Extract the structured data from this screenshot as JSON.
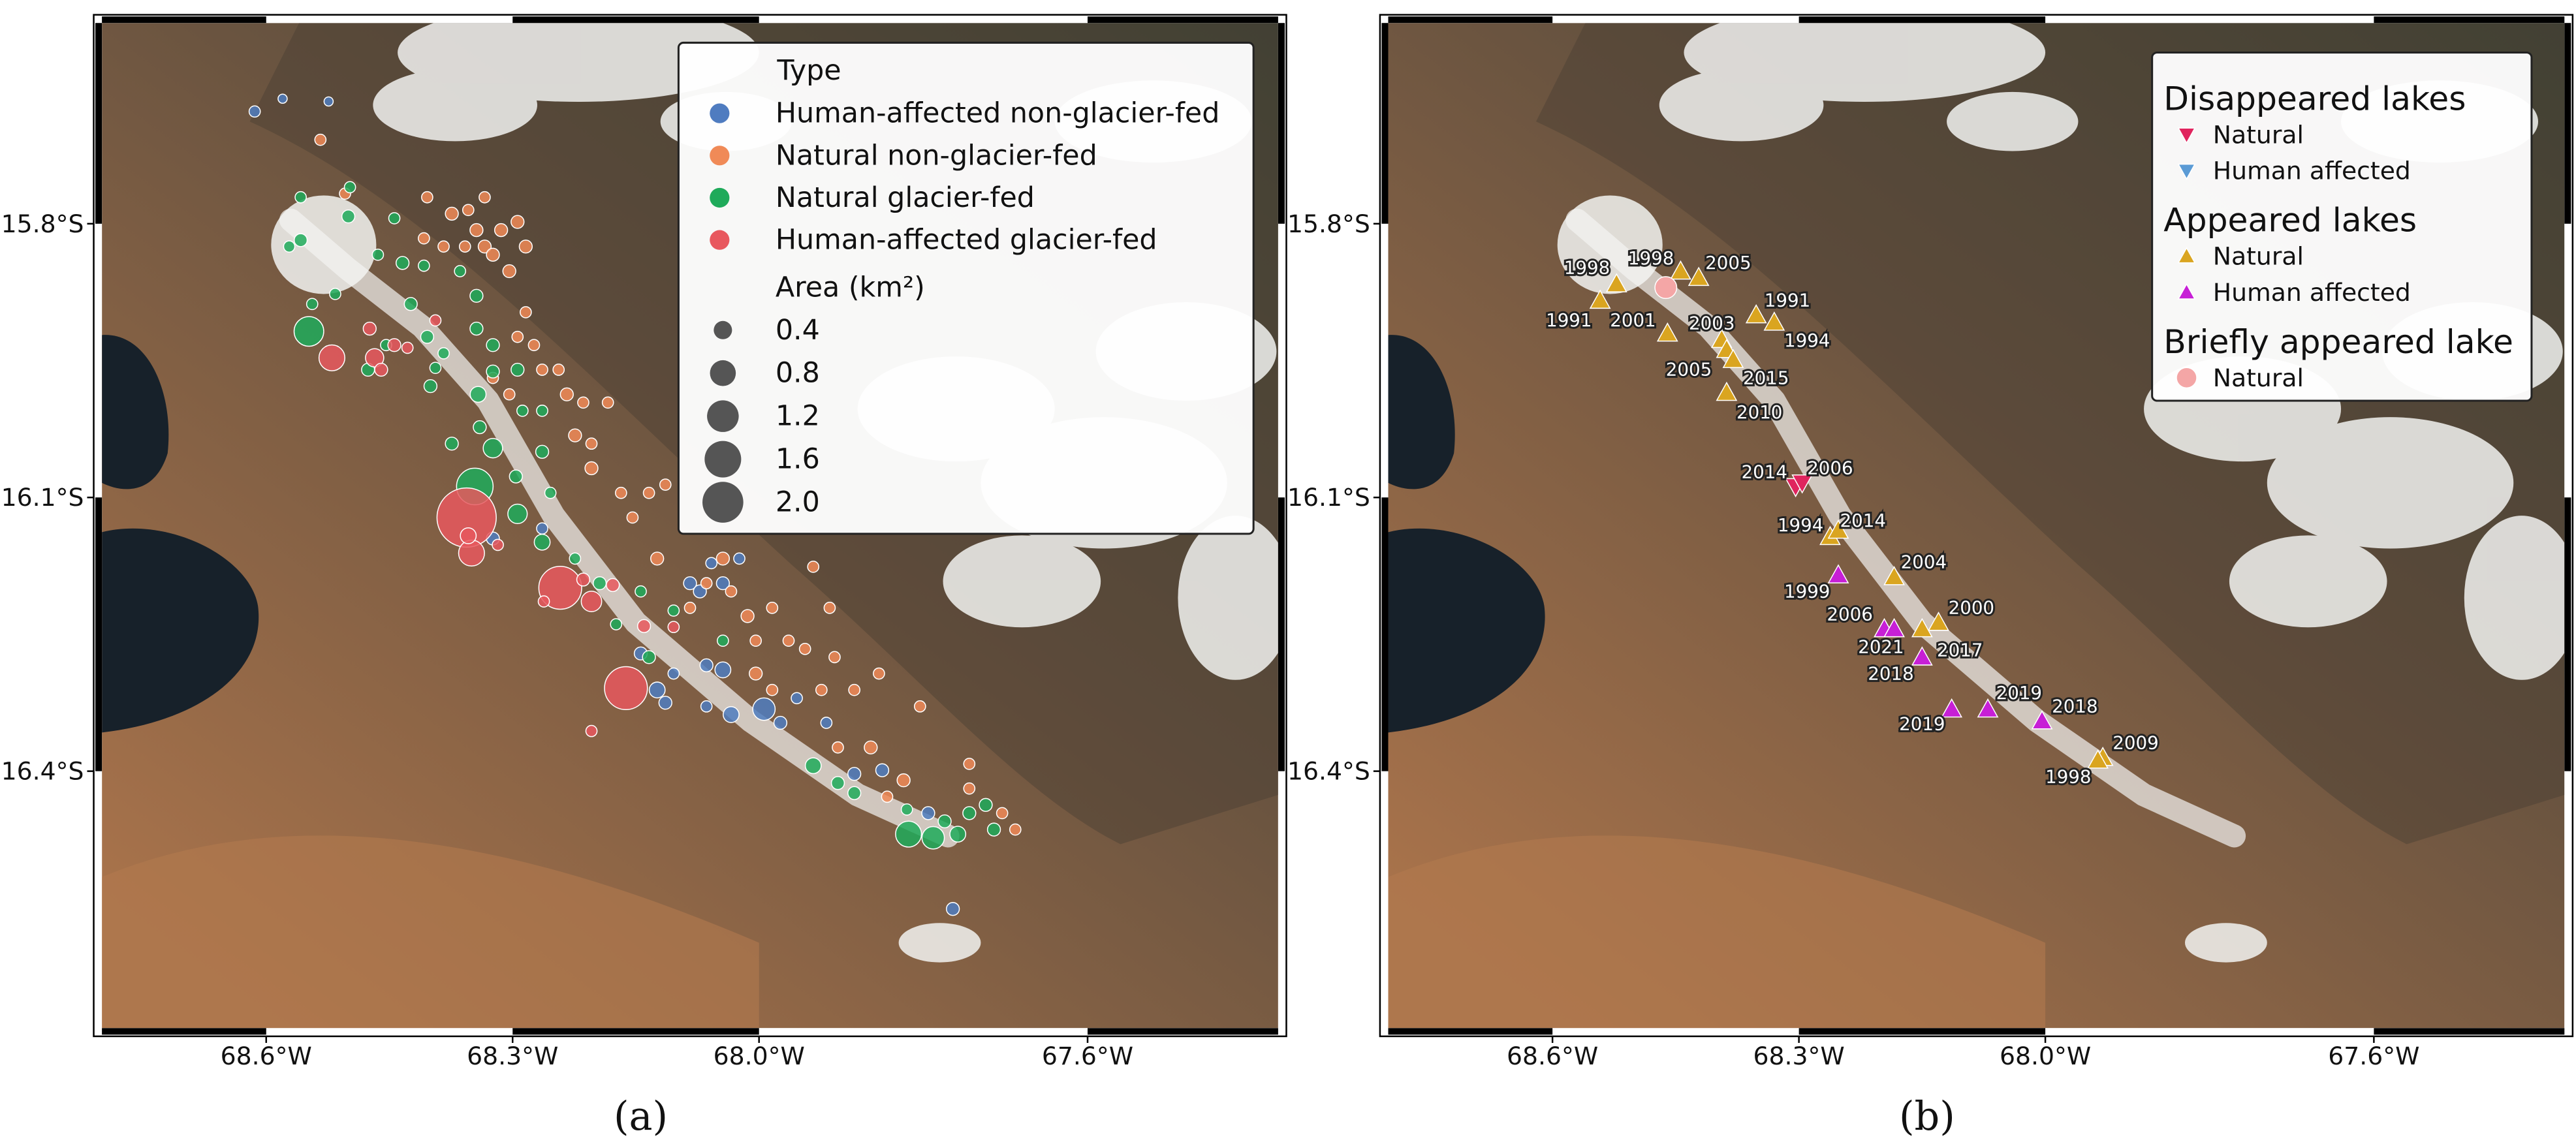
{
  "chart_data": [
    {
      "type": "bubble",
      "caption": "(a)",
      "xlim": [
        -68.8,
        -67.368
      ],
      "ylim": [
        -16.6816,
        -15.58
      ],
      "xticks": [
        {
          "value": -68.6,
          "label": "68.6°W"
        },
        {
          "value": -68.3,
          "label": "68.3°W"
        },
        {
          "value": -68.0,
          "label": "68.0°W"
        },
        {
          "value": -67.6,
          "label": "67.6°W"
        }
      ],
      "yticks": [
        {
          "value": -15.8,
          "label": "15.8°S"
        },
        {
          "value": -16.1,
          "label": "16.1°S"
        },
        {
          "value": -16.4,
          "label": "16.4°S"
        }
      ],
      "legend_title": "Type",
      "size_title": "Area (km²)",
      "size_ticks": [
        0.4,
        0.8,
        1.2,
        1.6,
        {
          "value": 2,
          "label": "2.0"
        }
      ],
      "series": [
        {
          "name": "Human-affected non-glacier-fed",
          "color": "#4f7cc0",
          "x": [
            -68.614,
            -68.58,
            -68.524,
            -68.324,
            -68.264,
            -68.144,
            -68.124,
            -68.114,
            -68.064,
            -68.044,
            -68.034,
            -67.994,
            -67.974,
            -67.954,
            -68.064,
            -68.084,
            -68.072,
            -68.058,
            -68.024,
            -68.044,
            -67.884,
            -67.85,
            -67.794,
            -67.764,
            -67.918,
            -68.104
          ],
          "y": [
            -15.677,
            -15.663,
            -15.666,
            -16.145,
            -16.134,
            -16.271,
            -16.311,
            -16.325,
            -16.284,
            -16.289,
            -16.338,
            -16.332,
            -16.347,
            -16.32,
            -16.329,
            -16.194,
            -16.203,
            -16.172,
            -16.167,
            -16.194,
            -16.403,
            -16.399,
            -16.446,
            -16.551,
            -16.347,
            -16.293
          ],
          "sizes": [
            0.15,
            0.1,
            0.1,
            0.2,
            0.15,
            0.2,
            0.3,
            0.2,
            0.2,
            0.3,
            0.3,
            0.6,
            0.2,
            0.15,
            0.15,
            0.2,
            0.2,
            0.15,
            0.15,
            0.2,
            0.2,
            0.2,
            0.2,
            0.2,
            0.15,
            0.15
          ]
        },
        {
          "name": "Natural non-glacier-fed",
          "color": "#f08a57",
          "x": [
            -68.534,
            -68.504,
            -68.374,
            -68.354,
            -68.334,
            -68.324,
            -68.304,
            -68.284,
            -68.344,
            -68.314,
            -68.334,
            -68.294,
            -68.358,
            -68.384,
            -68.408,
            -68.284,
            -68.294,
            -68.264,
            -68.234,
            -68.214,
            -68.224,
            -68.204,
            -68.184,
            -68.204,
            -68.168,
            -68.154,
            -68.134,
            -68.114,
            -68.124,
            -68.044,
            -68.064,
            -68.084,
            -68.034,
            -68.014,
            -67.984,
            -67.964,
            -67.944,
            -68.004,
            -67.924,
            -67.908,
            -67.884,
            -67.854,
            -67.864,
            -67.824,
            -67.904,
            -67.844,
            -67.744,
            -67.704,
            -67.688,
            -67.744,
            -67.804,
            -67.914,
            -67.934,
            -68.404,
            -68.324,
            -68.304,
            -68.274,
            -68.244,
            -68.004,
            -67.984
          ],
          "y": [
            -15.708,
            -15.767,
            -15.789,
            -15.785,
            -15.825,
            -15.834,
            -15.852,
            -15.825,
            -15.807,
            -15.807,
            -15.771,
            -15.798,
            -15.825,
            -15.825,
            -15.816,
            -15.897,
            -15.924,
            -15.96,
            -15.987,
            -15.996,
            -16.032,
            -16.041,
            -15.996,
            -16.068,
            -16.095,
            -16.122,
            -16.095,
            -16.086,
            -16.167,
            -16.167,
            -16.194,
            -16.221,
            -16.203,
            -16.23,
            -16.221,
            -16.257,
            -16.266,
            -16.293,
            -16.311,
            -16.275,
            -16.311,
            -16.293,
            -16.374,
            -16.41,
            -16.374,
            -16.428,
            -16.419,
            -16.446,
            -16.464,
            -16.392,
            -16.329,
            -16.221,
            -16.176,
            -15.771,
            -15.969,
            -15.987,
            -15.933,
            -15.96,
            -16.257,
            -16.311
          ],
          "sizes": [
            0.15,
            0.15,
            0.2,
            0.15,
            0.2,
            0.2,
            0.2,
            0.2,
            0.2,
            0.2,
            0.15,
            0.2,
            0.15,
            0.15,
            0.15,
            0.15,
            0.15,
            0.15,
            0.2,
            0.15,
            0.2,
            0.15,
            0.15,
            0.2,
            0.15,
            0.15,
            0.15,
            0.15,
            0.2,
            0.2,
            0.15,
            0.15,
            0.15,
            0.2,
            0.15,
            0.15,
            0.15,
            0.2,
            0.15,
            0.15,
            0.15,
            0.15,
            0.2,
            0.2,
            0.15,
            0.15,
            0.15,
            0.15,
            0.15,
            0.15,
            0.15,
            0.15,
            0.15,
            0.15,
            0.15,
            0.15,
            0.15,
            0.15,
            0.15,
            0.15
          ]
        },
        {
          "name": "Natural glacier-fed",
          "color": "#1faa5a",
          "x": [
            -68.548,
            -68.346,
            -68.294,
            -68.324,
            -68.296,
            -68.558,
            -68.572,
            -68.498,
            -68.5,
            -68.444,
            -68.434,
            -68.424,
            -68.404,
            -68.454,
            -68.476,
            -68.4,
            -68.342,
            -68.374,
            -68.324,
            -68.344,
            -68.344,
            -68.288,
            -68.264,
            -68.254,
            -68.264,
            -68.224,
            -68.194,
            -68.174,
            -68.144,
            -68.104,
            -68.134,
            -68.044,
            -67.934,
            -67.904,
            -67.884,
            -67.818,
            -67.788,
            -67.758,
            -67.744,
            -67.724,
            -67.714,
            -67.774,
            -67.82,
            -68.264,
            -68.294,
            -68.364,
            -68.324,
            -68.384,
            -68.544,
            -68.516,
            -68.408,
            -68.394,
            -68.34,
            -68.558,
            -68.464
          ],
          "y": [
            -15.918,
            -16.088,
            -16.118,
            -16.046,
            -16.077,
            -15.818,
            -15.825,
            -15.76,
            -15.792,
            -15.794,
            -15.843,
            -15.888,
            -15.924,
            -15.933,
            -15.96,
            -15.978,
            -15.987,
            -16.041,
            -15.962,
            -15.879,
            -15.915,
            -16.005,
            -16.05,
            -16.095,
            -16.149,
            -16.167,
            -16.194,
            -16.239,
            -16.203,
            -16.224,
            -16.275,
            -16.257,
            -16.394,
            -16.413,
            -16.424,
            -16.469,
            -16.473,
            -16.469,
            -16.446,
            -16.437,
            -16.464,
            -16.455,
            -16.442,
            -16.005,
            -15.96,
            -15.852,
            -15.933,
            -15.942,
            -15.888,
            -15.877,
            -15.846,
            -15.958,
            -16.023,
            -15.771,
            -15.834
          ],
          "sizes": [
            1.05,
            1.6,
            0.45,
            0.45,
            0.2,
            0.2,
            0.15,
            0.15,
            0.2,
            0.15,
            0.2,
            0.2,
            0.2,
            0.15,
            0.2,
            0.2,
            0.3,
            0.2,
            0.2,
            0.2,
            0.2,
            0.15,
            0.2,
            0.15,
            0.3,
            0.15,
            0.2,
            0.15,
            0.15,
            0.15,
            0.2,
            0.15,
            0.3,
            0.2,
            0.2,
            0.8,
            0.6,
            0.3,
            0.2,
            0.2,
            0.2,
            0.2,
            0.15,
            0.15,
            0.2,
            0.15,
            0.2,
            0.15,
            0.15,
            0.15,
            0.15,
            0.15,
            0.2,
            0.15,
            0.15
          ]
        },
        {
          "name": "Human-affected glacier-fed",
          "color": "#e8585e",
          "x": [
            -68.356,
            -68.52,
            -68.468,
            -68.444,
            -68.474,
            -68.35,
            -68.354,
            -68.242,
            -68.204,
            -68.162,
            -68.318,
            -68.262,
            -68.204,
            -68.14,
            -68.104,
            -68.46,
            -68.428,
            -68.394,
            -68.178,
            -68.214
          ],
          "y": [
            -16.122,
            -15.947,
            -15.947,
            -15.933,
            -15.915,
            -16.161,
            -16.142,
            -16.199,
            -16.214,
            -16.309,
            -16.152,
            -16.214,
            -16.356,
            -16.241,
            -16.242,
            -15.96,
            -15.936,
            -15.906,
            -16.196,
            -16.19
          ],
          "sizes": [
            4.2,
            0.8,
            0.4,
            0.2,
            0.2,
            0.8,
            0.3,
            2.2,
            0.5,
            2.2,
            0.15,
            0.15,
            0.15,
            0.2,
            0.15,
            0.2,
            0.15,
            0.15,
            0.2,
            0.2
          ]
        }
      ]
    },
    {
      "type": "scatter",
      "caption": "(b)",
      "xlim": [
        -68.8,
        -67.368
      ],
      "ylim": [
        -16.6816,
        -15.58
      ],
      "xticks": [
        {
          "value": -68.6,
          "label": "68.6°W"
        },
        {
          "value": -68.3,
          "label": "68.3°W"
        },
        {
          "value": -68.0,
          "label": "68.0°W"
        },
        {
          "value": -67.6,
          "label": "67.6°W"
        }
      ],
      "yticks": [
        {
          "value": -15.8,
          "label": "15.8°S"
        },
        {
          "value": -16.1,
          "label": "16.1°S"
        },
        {
          "value": -16.4,
          "label": "16.4°S"
        }
      ],
      "groups": [
        {
          "title": "Disappeared lakes",
          "series": [
            {
              "name": "Natural",
              "color": "#e0245e",
              "marker": "triangle-down",
              "x": [
                -68.304,
                -68.296
              ],
              "y": [
                -16.088,
                -16.084
              ],
              "labels": [
                2014,
                2006
              ]
            },
            {
              "name": "Human affected",
              "color": "#5b9bd5",
              "marker": "triangle-down",
              "x": [],
              "y": [],
              "labels": []
            }
          ]
        },
        {
          "title": "Appeared lakes",
          "series": [
            {
              "name": "Natural",
              "color": "#daa520",
              "marker": "triangle-up",
              "x": [
                -68.522,
                -68.542,
                -68.444,
                -68.422,
                -68.46,
                -68.394,
                -68.388,
                -68.38,
                -68.352,
                -68.33,
                -68.388,
                -68.262,
                -68.252,
                -68.184,
                -68.13,
                -68.15,
                -67.93,
                -67.936
              ],
              "y": [
                -15.866,
                -15.884,
                -15.852,
                -15.859,
                -15.92,
                -15.927,
                -15.938,
                -15.949,
                -15.9,
                -15.908,
                -15.985,
                -16.143,
                -16.136,
                -16.187,
                -16.237,
                -16.244,
                -16.385,
                -16.388
              ],
              "labels": [
                1998,
                1991,
                null,
                2005,
                2001,
                2003,
                2005,
                2015,
                1991,
                1994,
                2010,
                1994,
                2014,
                2004,
                2000,
                2017,
                2009,
                1998
              ]
            },
            {
              "name": "Human affected",
              "color": "#c71fd6",
              "marker": "triangle-up",
              "x": [
                -68.252,
                -68.196,
                -68.184,
                -68.15,
                -68.114,
                -68.07,
                -68.004
              ],
              "y": [
                -16.185,
                -16.244,
                -16.244,
                -16.275,
                -16.332,
                -16.332,
                -16.345
              ],
              "labels": [
                1999,
                2006,
                2021,
                2018,
                2019,
                2019,
                2018
              ]
            }
          ]
        },
        {
          "title": "Briefly appeared lake",
          "series": [
            {
              "name": "Natural",
              "color": "#f4a6a6",
              "marker": "circle",
              "x": [
                -68.462
              ],
              "y": [
                -15.87
              ],
              "labels": [
                1998
              ]
            }
          ]
        }
      ]
    }
  ]
}
